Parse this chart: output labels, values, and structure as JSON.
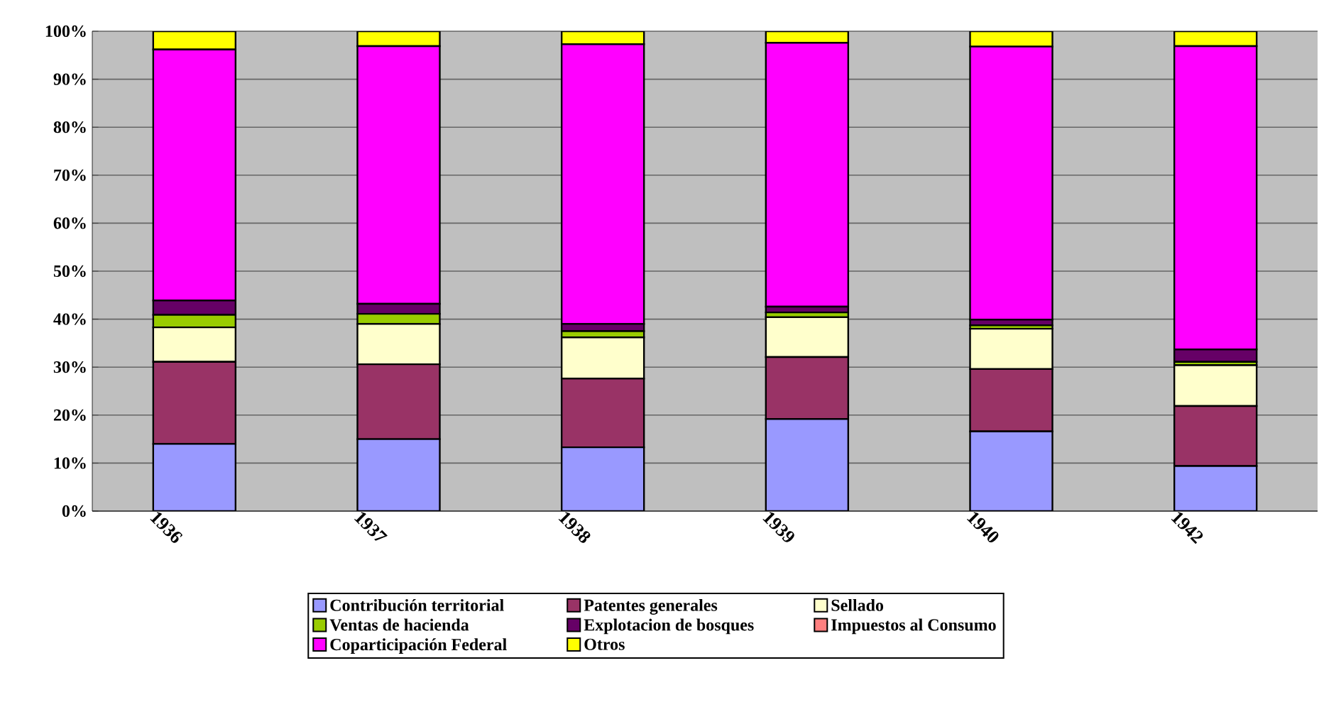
{
  "chart_data": {
    "type": "bar",
    "stacked": true,
    "categories": [
      "1936",
      "1937",
      "1938",
      "1939",
      "1940",
      "1942"
    ],
    "series": [
      {
        "name": "Contribución territorial",
        "color": "#9999ff",
        "values": [
          14.0,
          15.0,
          13.3,
          19.2,
          16.6,
          9.4
        ]
      },
      {
        "name": "Patentes generales",
        "color": "#993366",
        "values": [
          17.1,
          15.6,
          14.3,
          12.9,
          13.0,
          12.5
        ]
      },
      {
        "name": "Sellado",
        "color": "#ffffcc",
        "values": [
          7.2,
          8.4,
          8.6,
          8.3,
          8.4,
          8.5
        ]
      },
      {
        "name": "Ventas de hacienda",
        "color": "#99cc00",
        "values": [
          2.6,
          2.1,
          1.3,
          1.0,
          0.7,
          0.7
        ]
      },
      {
        "name": "Explotacion de bosques",
        "color": "#660066",
        "values": [
          3.0,
          2.1,
          1.5,
          1.2,
          1.2,
          2.6
        ]
      },
      {
        "name": "Impuestos al Consumo",
        "color": "#ff8080",
        "values": [
          0,
          0,
          0,
          0,
          0,
          0
        ]
      },
      {
        "name": "Coparticipación Federal",
        "color": "#ff00ff",
        "values": [
          52.3,
          53.7,
          58.3,
          55.0,
          56.9,
          63.2
        ]
      },
      {
        "name": "Otros",
        "color": "#ffff00",
        "values": [
          3.8,
          3.1,
          2.7,
          2.4,
          3.2,
          3.1
        ]
      }
    ],
    "ylim": [
      0,
      100
    ],
    "yticks": [
      {
        "value": 0,
        "label": "0%"
      },
      {
        "value": 10,
        "label": "10%"
      },
      {
        "value": 20,
        "label": "20%"
      },
      {
        "value": 30,
        "label": "30%"
      },
      {
        "value": 40,
        "label": "40%"
      },
      {
        "value": 50,
        "label": "50%"
      },
      {
        "value": 60,
        "label": "60%"
      },
      {
        "value": 70,
        "label": "70%"
      },
      {
        "value": 80,
        "label": "80%"
      },
      {
        "value": 90,
        "label": "90%"
      },
      {
        "value": 100,
        "label": "100%"
      }
    ],
    "grid": "y",
    "legend": "bottom"
  }
}
